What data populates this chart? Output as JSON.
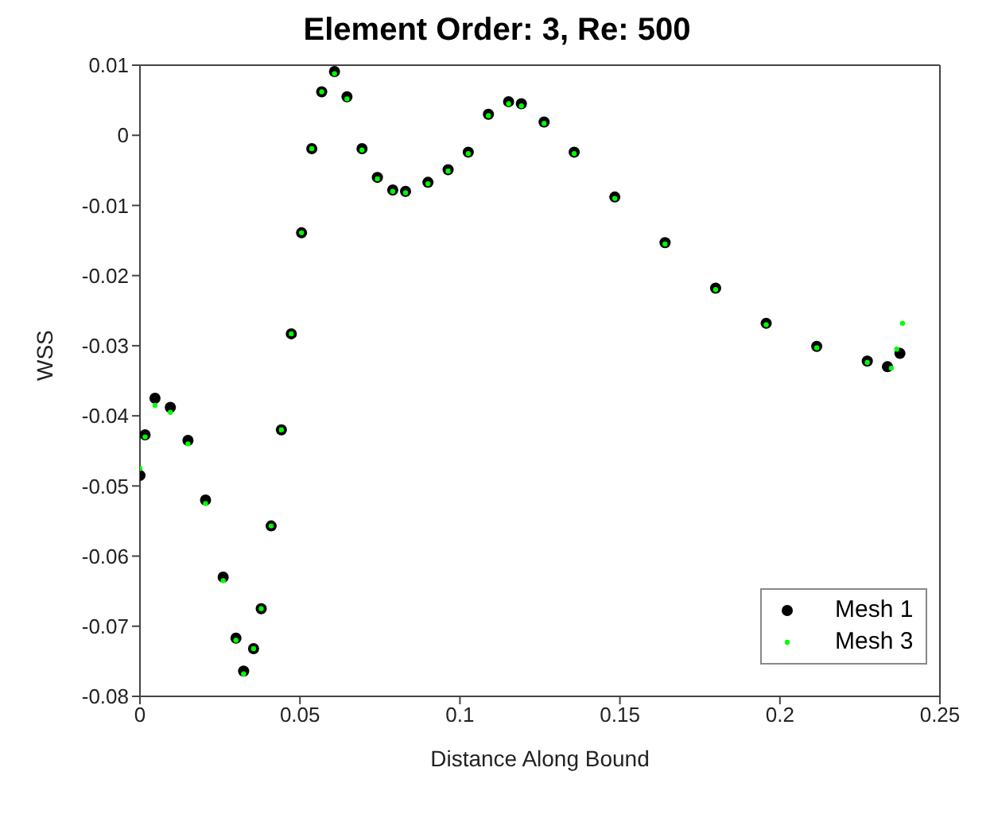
{
  "chart_data": {
    "type": "scatter",
    "title": "Element Order: 3, Re: 500",
    "xlabel": "Distance Along Bound",
    "ylabel": "WSS",
    "xlim": [
      0,
      0.25
    ],
    "xticks": [
      0,
      0.05,
      0.1,
      0.15,
      0.2,
      0.25
    ],
    "ylim": [
      -0.08,
      0.01
    ],
    "yticks": [
      -0.08,
      -0.07,
      -0.06,
      -0.05,
      -0.04,
      -0.03,
      -0.02,
      -0.01,
      0,
      0.01
    ],
    "grid": false,
    "legend": "bottom right",
    "series": [
      {
        "name": "Mesh 1",
        "color": "#000000",
        "marker": "circle",
        "x": [
          0,
          0.0016,
          0.0047,
          0.0095,
          0.015,
          0.0205,
          0.026,
          0.03,
          0.0324,
          0.0355,
          0.0379,
          0.041,
          0.0442,
          0.0473,
          0.0505,
          0.0537,
          0.0568,
          0.0608,
          0.0647,
          0.0694,
          0.0742,
          0.079,
          0.083,
          0.09,
          0.0963,
          0.1026,
          0.1089,
          0.1152,
          0.1192,
          0.1263,
          0.1357,
          0.1484,
          0.1641,
          0.1799,
          0.1957,
          0.2115,
          0.2273,
          0.2336,
          0.2375
        ],
        "values": [
          -0.0485,
          -0.0427,
          -0.0375,
          -0.0388,
          -0.0435,
          -0.052,
          -0.063,
          -0.0717,
          -0.0764,
          -0.0732,
          -0.0675,
          -0.0557,
          -0.042,
          -0.0283,
          -0.0139,
          -0.0019,
          0.0062,
          0.0091,
          0.0055,
          -0.0019,
          -0.006,
          -0.0078,
          -0.008,
          -0.0067,
          -0.0049,
          -0.0024,
          0.003,
          0.0048,
          0.0045,
          0.0019,
          -0.0024,
          -0.0088,
          -0.0153,
          -0.0218,
          -0.0268,
          -0.0301,
          -0.0322,
          -0.033,
          -0.0311
        ]
      },
      {
        "name": "Mesh 3",
        "color": "#00ff00",
        "marker": "circle",
        "x": [
          0,
          0.0016,
          0.0047,
          0.0095,
          0.015,
          0.0205,
          0.026,
          0.03,
          0.0324,
          0.0355,
          0.0379,
          0.041,
          0.0442,
          0.0473,
          0.0505,
          0.0537,
          0.0568,
          0.0608,
          0.0647,
          0.0694,
          0.0742,
          0.079,
          0.083,
          0.09,
          0.0963,
          0.1026,
          0.1089,
          0.1152,
          0.1192,
          0.1263,
          0.1357,
          0.1484,
          0.1641,
          0.1799,
          0.1957,
          0.2115,
          0.2273,
          0.2348,
          0.2365,
          0.2383
        ],
        "values": [
          -0.0475,
          -0.043,
          -0.0385,
          -0.0395,
          -0.044,
          -0.0525,
          -0.0635,
          -0.072,
          -0.0768,
          -0.0732,
          -0.0675,
          -0.0557,
          -0.042,
          -0.0283,
          -0.0139,
          -0.0019,
          0.0062,
          0.0088,
          0.0052,
          -0.0021,
          -0.0062,
          -0.008,
          -0.0082,
          -0.0069,
          -0.0051,
          -0.0026,
          0.0028,
          0.0045,
          0.0042,
          0.0017,
          -0.0026,
          -0.009,
          -0.0155,
          -0.022,
          -0.027,
          -0.0303,
          -0.0324,
          -0.0332,
          -0.0305,
          -0.0268
        ]
      }
    ]
  }
}
